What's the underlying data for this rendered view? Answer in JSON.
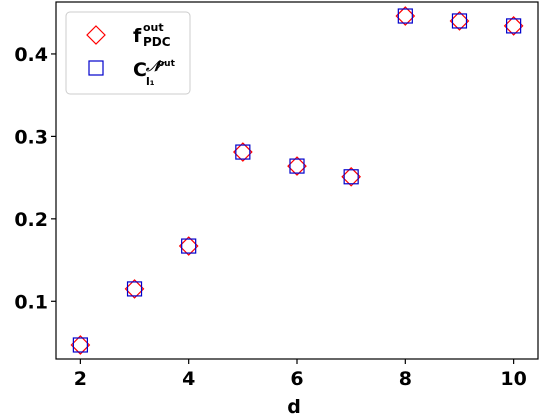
{
  "chart_data": {
    "type": "scatter",
    "xlabel": "d",
    "ylabel": "",
    "xlim": [
      1.55,
      10.45
    ],
    "ylim": [
      0.03,
      0.463
    ],
    "xticks": [
      2,
      4,
      6,
      8,
      10
    ],
    "yticks": [
      0.1,
      0.2,
      0.3,
      0.4
    ],
    "ytick_labels": [
      "0.1",
      "0.2",
      "0.3",
      "0.4"
    ],
    "grid": false,
    "legend_position": "top-left",
    "x": [
      2,
      3,
      4,
      5,
      6,
      7,
      8,
      9,
      10
    ],
    "series": [
      {
        "name_main": "f",
        "name_sup": "out",
        "name_sub": "PDC",
        "marker": "diamond",
        "color": "#ff0000",
        "values": [
          0.047,
          0.115,
          0.167,
          0.281,
          0.264,
          0.251,
          0.446,
          0.44,
          0.434
        ]
      },
      {
        "name_main": "C",
        "name_sub": "l₁",
        "name_sup_script": "𝒩",
        "name_sup": "out",
        "marker": "square",
        "color": "#0000cc",
        "values": [
          0.047,
          0.115,
          0.167,
          0.281,
          0.264,
          0.251,
          0.446,
          0.44,
          0.434
        ]
      }
    ]
  }
}
